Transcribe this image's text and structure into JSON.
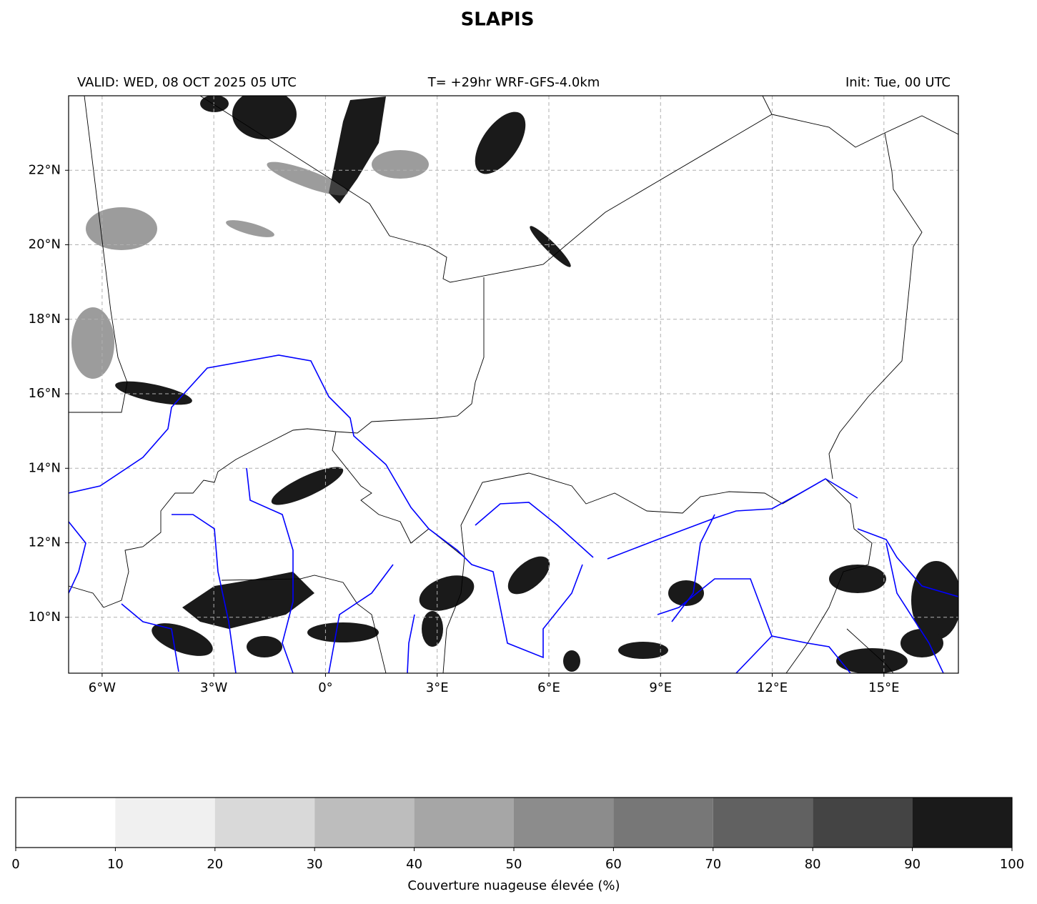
{
  "title": "SLAPIS",
  "header": {
    "valid": "VALID: WED, 08 OCT 2025 05 UTC",
    "run": "T= +29hr WRF-GFS-4.0km",
    "init": "Init: Tue, 00 UTC"
  },
  "map": {
    "xlim": [
      -6.9,
      17
    ],
    "ylim": [
      8.5,
      24
    ],
    "grid": true,
    "xticks": [
      {
        "value": -6,
        "label": "6°W"
      },
      {
        "value": -3,
        "label": "3°W"
      },
      {
        "value": 0,
        "label": "0°"
      },
      {
        "value": 3,
        "label": "3°E"
      },
      {
        "value": 6,
        "label": "6°E"
      },
      {
        "value": 9,
        "label": "9°E"
      },
      {
        "value": 12,
        "label": "12°E"
      },
      {
        "value": 15,
        "label": "15°E"
      }
    ],
    "yticks": [
      {
        "value": 10,
        "label": "10°N"
      },
      {
        "value": 12,
        "label": "12°N"
      },
      {
        "value": 14,
        "label": "14°N"
      },
      {
        "value": 16,
        "label": "16°N"
      },
      {
        "value": 18,
        "label": "18°N"
      },
      {
        "value": 20,
        "label": "20°N"
      },
      {
        "value": 22,
        "label": "22°N"
      }
    ]
  },
  "colorbar": {
    "label": "Couverture nuageuse élevée (%)",
    "lim": [
      0,
      100
    ],
    "ticks": [
      0,
      10,
      20,
      30,
      40,
      50,
      60,
      70,
      80,
      90,
      100
    ],
    "colors": [
      "#ffffff",
      "#f0f0f0",
      "#d9d9d9",
      "#bdbdbd",
      "#a6a6a6",
      "#8c8c8c",
      "#777777",
      "#616161",
      "#444444",
      "#1a1a1a"
    ]
  }
}
